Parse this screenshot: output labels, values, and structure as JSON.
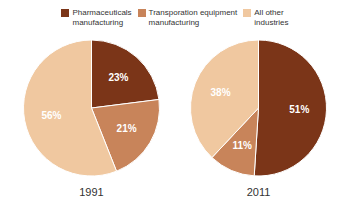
{
  "chart_data": [
    {
      "type": "pie",
      "title": "1991",
      "categories": [
        "Pharmaceuticals\nmanufacturing",
        "Transporation equipment\nmanufacturing",
        "All other\nindustries"
      ],
      "values": [
        23,
        21,
        56
      ],
      "value_labels": [
        "23%",
        "21%",
        "56%"
      ],
      "colors": [
        "#7B3518",
        "#C8845A",
        "#F0C8A0"
      ],
      "data_labels": true,
      "legend": "top"
    },
    {
      "type": "pie",
      "title": "2011",
      "categories": [
        "Pharmaceuticals\nmanufacturing",
        "Transporation equipment\nmanufacturing",
        "All other\nindustries"
      ],
      "values": [
        51,
        11,
        38
      ],
      "value_labels": [
        "51%",
        "11%",
        "38%"
      ],
      "colors": [
        "#7B3518",
        "#C8845A",
        "#F0C8A0"
      ],
      "data_labels": true
    }
  ]
}
